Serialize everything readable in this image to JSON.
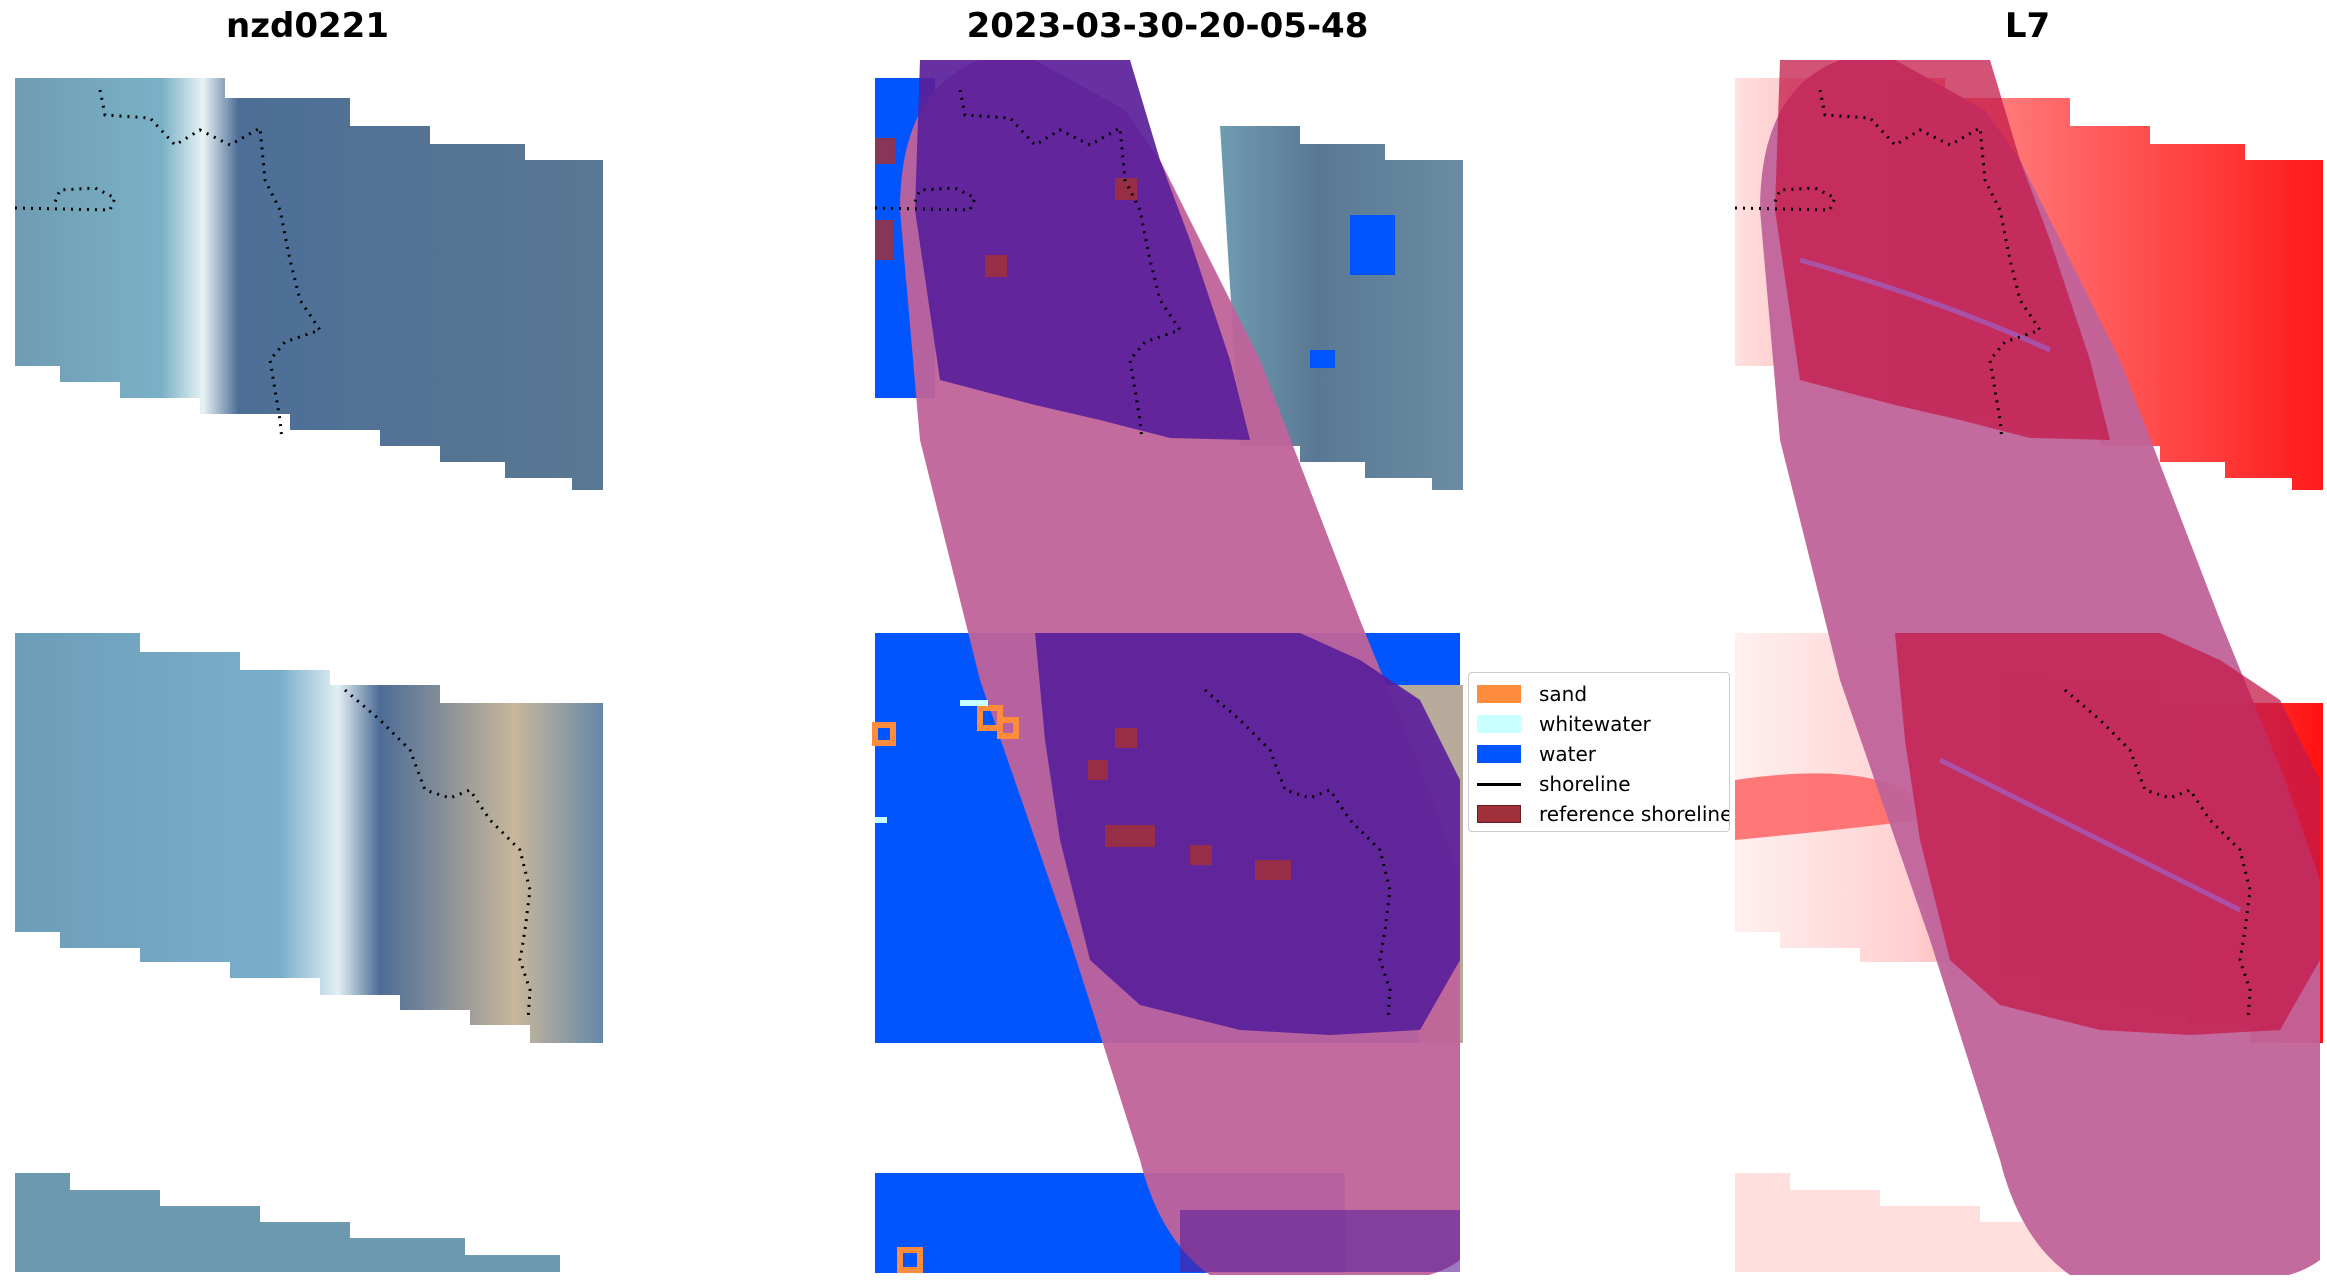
{
  "panels": [
    {
      "title": "nzd0221"
    },
    {
      "title": "2023-03-30-20-05-48"
    },
    {
      "title": "L7"
    }
  ],
  "legend": {
    "items": [
      {
        "label": "sand",
        "color": "#ff8c3c",
        "kind": "patch"
      },
      {
        "label": "whitewater",
        "color": "#c8ffff",
        "kind": "patch"
      },
      {
        "label": "water",
        "color": "#0055ff",
        "kind": "patch"
      },
      {
        "label": "shoreline",
        "color": "#000000",
        "kind": "line"
      },
      {
        "label": "reference shoreline",
        "color": "#a0303a",
        "kind": "patch"
      }
    ]
  },
  "colors": {
    "imagery_water": "#6a9bb5",
    "imagery_land": "#4d6d8a",
    "imagery_sand": "#c7b59a",
    "class_water": "#0055ff",
    "class_sand": "#ff8c3c",
    "overlay_buffer": "#c0639a",
    "overlay_reference": "#5a1f9a",
    "index_high": "#ff1a1a",
    "index_low": "#ffe6e6"
  }
}
